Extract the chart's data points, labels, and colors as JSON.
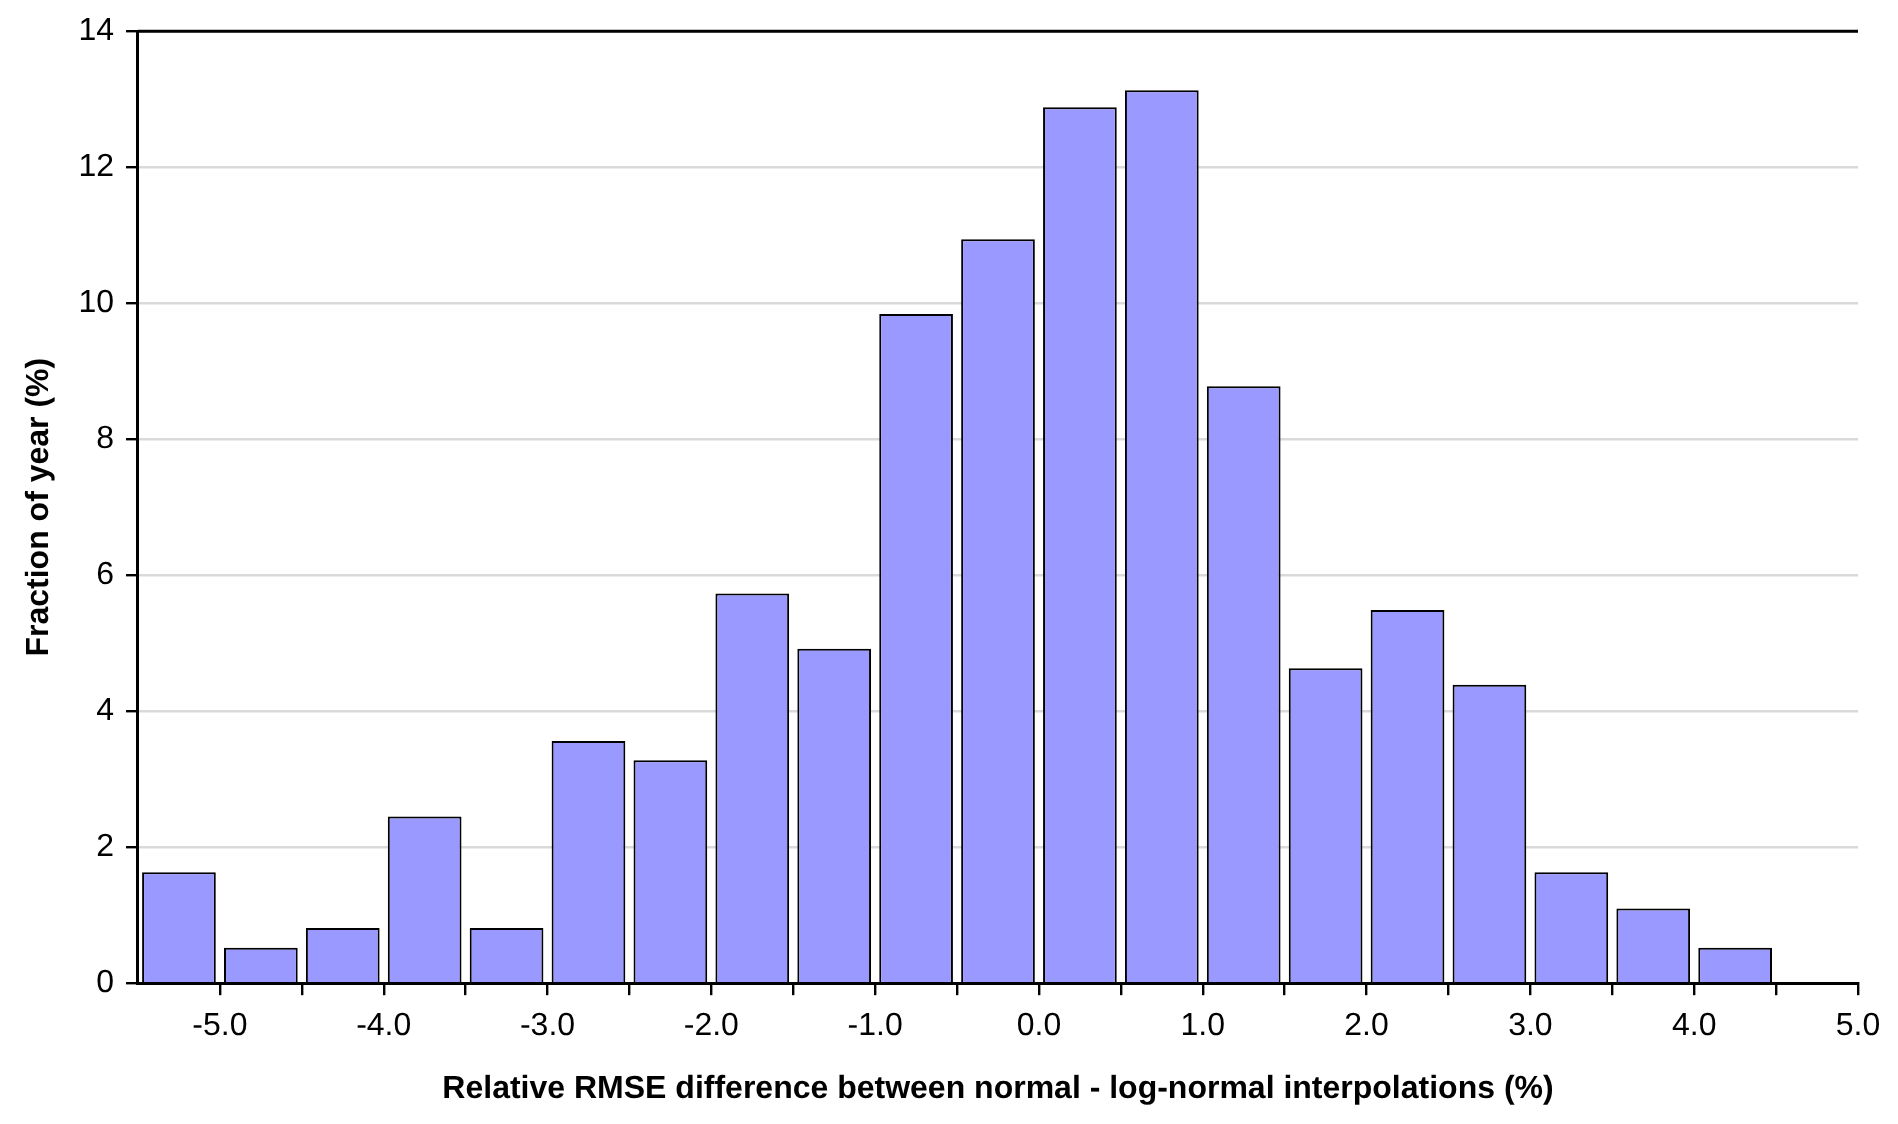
{
  "chart_data": {
    "type": "histogram",
    "xlabel": "Relative RMSE difference between normal - log-normal interpolations (%)",
    "ylabel": "Fraction of year (%)",
    "bins": [
      -5.5,
      -5.0,
      -4.5,
      -4.0,
      -3.5,
      -3.0,
      -2.5,
      -2.0,
      -1.5,
      -1.0,
      -0.5,
      0.0,
      0.5,
      1.0,
      1.5,
      2.0,
      2.5,
      3.0,
      3.5,
      4.0,
      4.5,
      5.0
    ],
    "values": [
      1.63,
      0.52,
      0.81,
      2.45,
      0.81,
      3.56,
      3.28,
      5.73,
      4.92,
      9.84,
      10.94,
      12.88,
      13.13,
      8.78,
      4.63,
      5.49,
      4.39,
      1.63,
      1.1,
      0.52,
      0
    ],
    "color": "#9999ff",
    "xlim": [
      -5.5,
      5.0
    ],
    "xticks": [
      {
        "value": -5,
        "label": "-5.0"
      },
      {
        "value": -4.5,
        "label": null
      },
      {
        "value": -4,
        "label": "-4.0"
      },
      {
        "value": -3.5,
        "label": null
      },
      {
        "value": -3,
        "label": "-3.0"
      },
      {
        "value": -2.5,
        "label": null
      },
      {
        "value": -2,
        "label": "-2.0"
      },
      {
        "value": -1.5,
        "label": null
      },
      {
        "value": -1,
        "label": "-1.0"
      },
      {
        "value": -0.5,
        "label": null
      },
      {
        "value": 0,
        "label": "0.0"
      },
      {
        "value": 0.5,
        "label": null
      },
      {
        "value": 1,
        "label": "1.0"
      },
      {
        "value": 1.5,
        "label": null
      },
      {
        "value": 2,
        "label": "2.0"
      },
      {
        "value": 2.5,
        "label": null
      },
      {
        "value": 3,
        "label": "3.0"
      },
      {
        "value": 3.5,
        "label": null
      },
      {
        "value": 4,
        "label": "4.0"
      },
      {
        "value": 4.5,
        "label": null
      },
      {
        "value": 5,
        "label": "5.0"
      }
    ],
    "ylim": [
      0,
      14
    ],
    "yticks": [
      0,
      2,
      4,
      6,
      8,
      10,
      12,
      14
    ],
    "grid": "y",
    "legend": false
  }
}
